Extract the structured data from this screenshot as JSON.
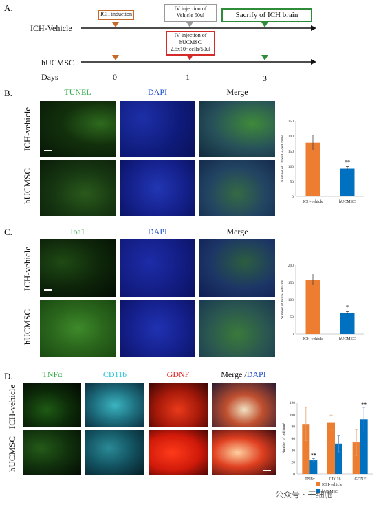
{
  "panels": {
    "a": {
      "letter": "A.",
      "row1_label": "ICH-Vehicle",
      "row2_label": "hUCMSC",
      "days_label": "Days",
      "days": [
        "0",
        "1",
        "3"
      ],
      "box_ich": "ICH induction",
      "box_vehicle_l1": "IV injection of",
      "box_vehicle_l2": "Vehicle 50ul",
      "box_sacrify": "Sacrify of ICH brain",
      "box_huc_l1": "IV injection of",
      "box_huc_l2": "hUCMSC",
      "box_huc_l3": "2.5x10⁵ cells/50ul",
      "colors": {
        "orange": "#c46a2a",
        "gray": "#999999",
        "green": "#2e8b3a",
        "red": "#d42a2a"
      }
    },
    "b": {
      "letter": "B.",
      "col_heads": [
        "TUNEL",
        "DAPI",
        "Merge"
      ],
      "row_labels": [
        "ICH-vehicle",
        "hUCMSC"
      ]
    },
    "c": {
      "letter": "C.",
      "col_heads": [
        "Iba1",
        "DAPI",
        "Merge"
      ],
      "row_labels": [
        "ICH-vehicle",
        "hUCMSC"
      ]
    },
    "d": {
      "letter": "D.",
      "col_heads": [
        "TNFα",
        "CD11b",
        "GDNF"
      ],
      "merge_head_a": "Merge /",
      "merge_head_b": "DAPI",
      "row_labels": [
        "ICH-vehicle",
        "hUCMSC"
      ]
    }
  },
  "colors": {
    "orange": "#ed7d31",
    "blue": "#0070c0",
    "tunel_green": "#2faa4a",
    "dapi_blue": "#1f4fd0",
    "cd11b_cyan": "#22c4d8",
    "gdnf_red": "#e02020"
  },
  "watermark": "公众号 · 干细胞",
  "chart_data": [
    {
      "type": "bar",
      "ylabel": "Number of TUNEL+ cell /mm²",
      "categories": [
        "ICH-vehicle",
        "hUCMSC"
      ],
      "values": [
        178,
        92
      ],
      "errors": [
        25,
        7
      ],
      "ylim": [
        0,
        250
      ],
      "yticks": [
        "0",
        "50",
        "100",
        "150",
        "200",
        "250"
      ],
      "significance": [
        "",
        "**"
      ]
    },
    {
      "type": "bar",
      "ylabel": "Number of Iba1+ cell / ml",
      "categories": [
        "ICH-vehicle",
        "hUCMSC"
      ],
      "values": [
        157,
        60
      ],
      "errors": [
        15,
        5
      ],
      "ylim": [
        0,
        200
      ],
      "yticks": [
        "0",
        "50",
        "100",
        "150",
        "200"
      ],
      "significance": [
        "",
        "*"
      ]
    },
    {
      "type": "bar",
      "ylabel": "Number of cell/mm²",
      "categories": [
        "TNFα",
        "CD11b",
        "GDNF"
      ],
      "series": [
        {
          "name": "ICH-vehicle",
          "values": [
            84,
            87,
            53
          ],
          "errors": [
            28,
            12,
            22
          ]
        },
        {
          "name": "hUCMSC",
          "values": [
            23,
            51,
            92
          ],
          "errors": [
            3,
            14,
            20
          ]
        }
      ],
      "ylim": [
        0,
        120
      ],
      "yticks": [
        "0",
        "20",
        "40",
        "60",
        "80",
        "100",
        "120"
      ],
      "significance": [
        "**",
        "",
        "**"
      ]
    }
  ]
}
